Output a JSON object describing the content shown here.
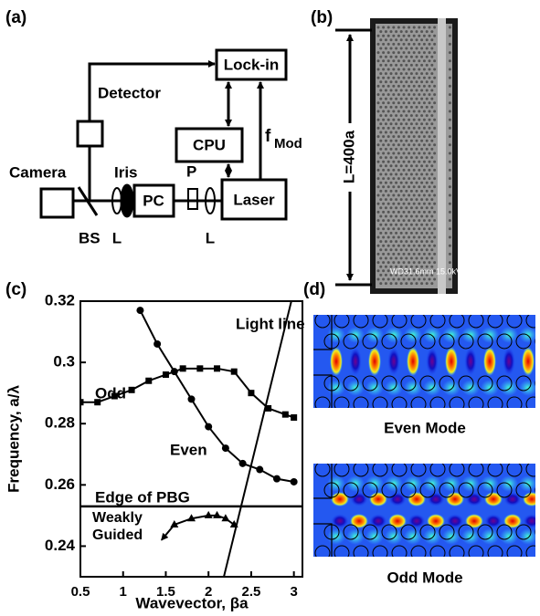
{
  "chart_data": {
    "type": "line",
    "panel_label": "(c)",
    "xlabel": "Wavevector, βa",
    "ylabel": "Frequency, a/λ",
    "xlim": [
      0.5,
      3.1
    ],
    "ylim": [
      0.23,
      0.32
    ],
    "xticks": [
      0.5,
      1,
      1.5,
      2,
      2.5,
      3
    ],
    "yticks": [
      0.24,
      0.26,
      0.28,
      0.3,
      0.32
    ],
    "series": [
      {
        "name": "Even",
        "color": "#000000",
        "marker": "circle",
        "x": [
          1.2,
          1.4,
          1.6,
          1.8,
          2.0,
          2.2,
          2.4,
          2.6,
          2.8,
          3.0
        ],
        "values": [
          0.317,
          0.306,
          0.297,
          0.288,
          0.279,
          0.272,
          0.267,
          0.265,
          0.262,
          0.261
        ]
      },
      {
        "name": "Odd",
        "color": "#000000",
        "marker": "square",
        "x": [
          0.5,
          0.7,
          0.9,
          1.1,
          1.3,
          1.5,
          1.7,
          1.9,
          2.1,
          2.3,
          2.5,
          2.7,
          2.9,
          3.0
        ],
        "values": [
          0.287,
          0.287,
          0.289,
          0.291,
          0.294,
          0.296,
          0.298,
          0.298,
          0.298,
          0.297,
          0.29,
          0.285,
          0.283,
          0.282
        ]
      },
      {
        "name": "Weakly Guided",
        "color": "#000000",
        "marker": "triangle",
        "x": [
          1.45,
          1.6,
          1.8,
          2.0,
          2.1,
          2.2,
          2.3
        ],
        "values": [
          0.242,
          0.247,
          0.249,
          0.25,
          0.25,
          0.249,
          0.247
        ]
      },
      {
        "name": "Light line",
        "color": "#000000",
        "marker": "none",
        "x": [
          2.18,
          2.97
        ],
        "values": [
          0.23,
          0.32
        ]
      }
    ],
    "hlines": [
      {
        "name": "Edge of PBG",
        "value": 0.253
      }
    ]
  },
  "setup": {
    "panel_label": "(a)",
    "lock_in": "Lock-in",
    "detector": "Detector",
    "cpu": "CPU",
    "f": "f",
    "f_sub": "Mod",
    "camera": "Camera",
    "iris": "Iris",
    "pc": "PC",
    "p": "P",
    "laser": "Laser",
    "bs": "BS",
    "lens_1": "L",
    "lens_2": "L"
  },
  "sem": {
    "panel_label": "(b)",
    "length_label": "L=400a",
    "info": "WD31.6mm 15.0kV"
  },
  "modes": {
    "panel_label": "(d)",
    "even": "Even Mode",
    "odd": "Odd Mode"
  }
}
